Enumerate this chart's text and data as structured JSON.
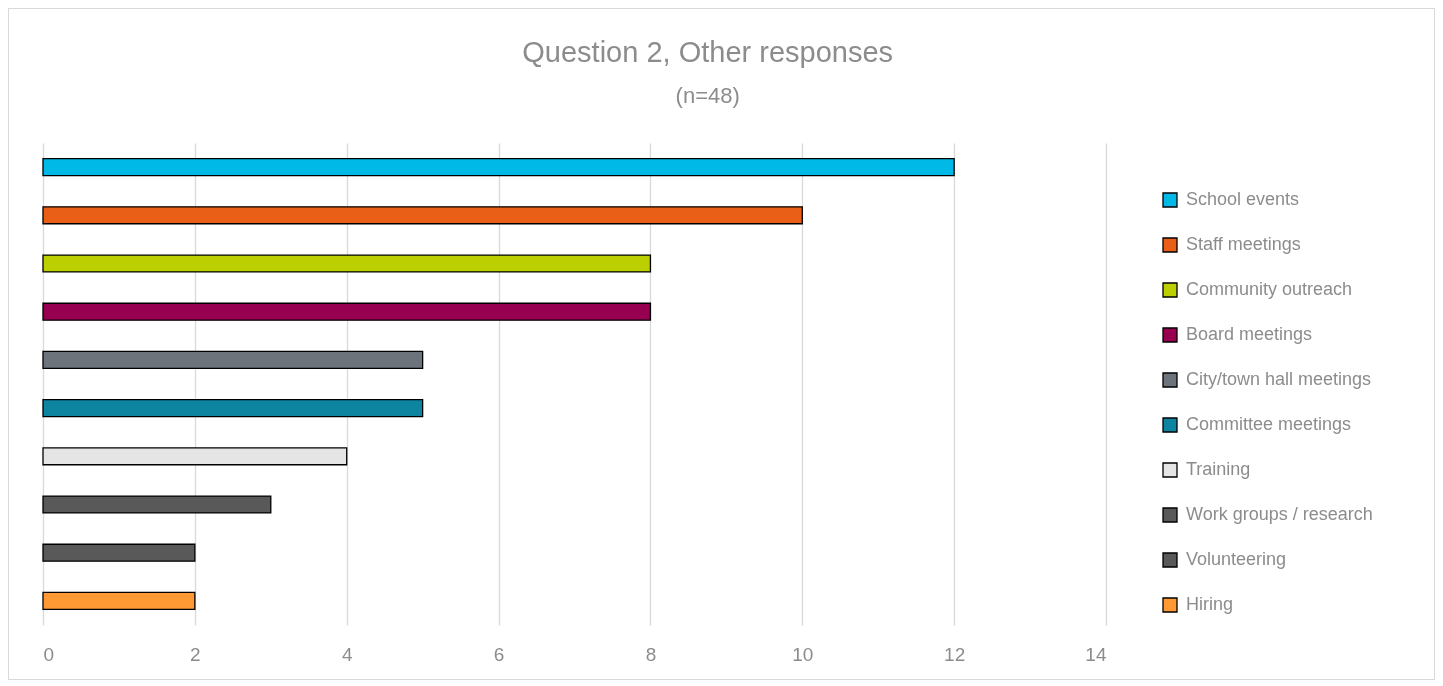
{
  "chart_data": {
    "type": "bar",
    "orientation": "horizontal",
    "title": "Question 2, Other responses",
    "subtitle": "(n=48)",
    "categories": [
      null
    ],
    "series": [
      {
        "name": "School events",
        "color": "#00b9e6",
        "values": [
          12
        ]
      },
      {
        "name": "Staff meetings",
        "color": "#ea5f17",
        "values": [
          10
        ]
      },
      {
        "name": "Community outreach",
        "color": "#bccf00",
        "values": [
          8
        ]
      },
      {
        "name": "Board meetings",
        "color": "#970050",
        "values": [
          8
        ]
      },
      {
        "name": "City/town hall meetings",
        "color": "#6d737a",
        "values": [
          5
        ]
      },
      {
        "name": "Committee meetings",
        "color": "#0e85a0",
        "values": [
          5
        ]
      },
      {
        "name": "Training",
        "color": "#e5e5e5",
        "values": [
          4
        ]
      },
      {
        "name": "Work groups / research",
        "color": "#595959",
        "values": [
          3
        ]
      },
      {
        "name": "Volunteering",
        "color": "#595959",
        "values": [
          2
        ]
      },
      {
        "name": "Hiring",
        "color": "#ff9933",
        "values": [
          2
        ]
      }
    ],
    "xlim": [
      0,
      14
    ],
    "xticks": [
      0,
      2,
      4,
      6,
      8,
      10,
      12,
      14
    ],
    "grid": "x",
    "legend": "right"
  }
}
